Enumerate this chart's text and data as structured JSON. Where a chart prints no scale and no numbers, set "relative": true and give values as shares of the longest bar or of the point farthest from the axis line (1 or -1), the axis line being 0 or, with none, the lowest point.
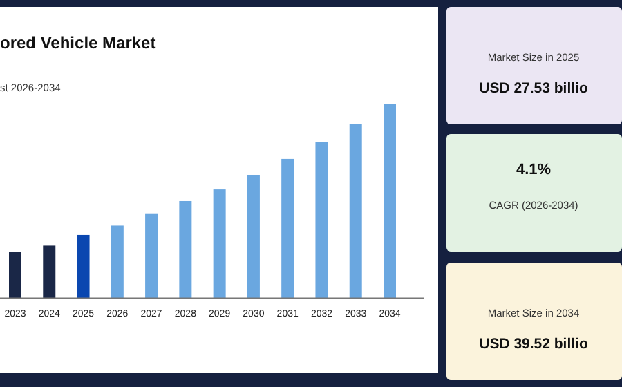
{
  "chart_data": [
    {
      "type": "bar",
      "title": "ored Vehicle Market",
      "subtitle": "st 2026-2034",
      "categories": [
        "2023",
        "2024",
        "2025",
        "2026",
        "2027",
        "2028",
        "2029",
        "2030",
        "2031",
        "2032",
        "2033",
        "2034"
      ],
      "values": [
        0.239,
        0.27,
        0.325,
        0.373,
        0.436,
        0.499,
        0.559,
        0.634,
        0.716,
        0.802,
        0.896,
        1
      ],
      "colors": [
        "#1a2747",
        "#1a2747",
        "#0a47b0",
        "#6aa7e0",
        "#6aa7e0",
        "#6aa7e0",
        "#6aa7e0",
        "#6aa7e0",
        "#6aa7e0",
        "#6aa7e0",
        "#6aa7e0",
        "#6aa7e0"
      ],
      "relative": true
    },
    {
      "type": "other",
      "title": "USD 27.53 billio",
      "subtitle": "Market Size in 2025"
    },
    {
      "type": "other",
      "title": "4.1%",
      "subtitle": "CAGR (2026-2034)"
    },
    {
      "type": "other",
      "title": "USD 39.52 billio",
      "subtitle": "Market Size in 2034"
    }
  ]
}
